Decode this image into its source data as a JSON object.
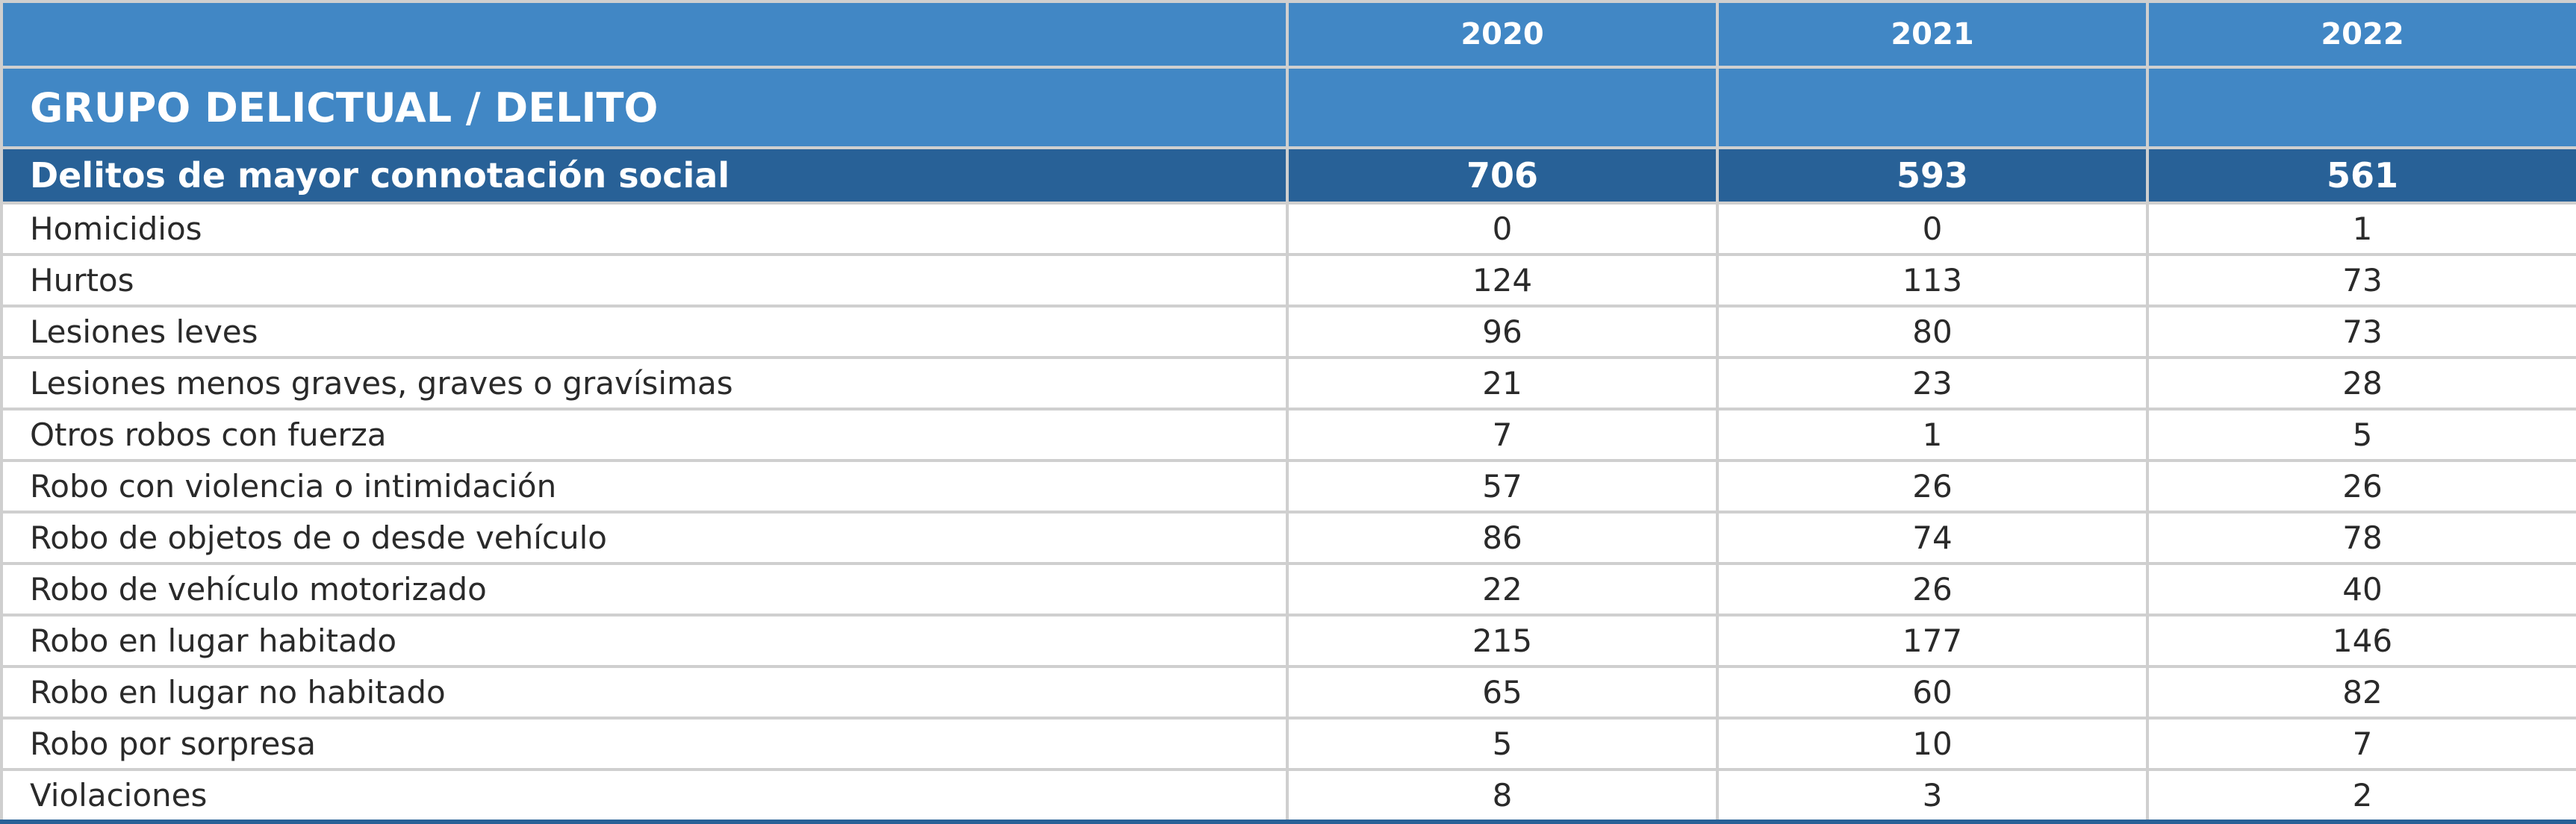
{
  "table": {
    "years": [
      "2020",
      "2021",
      "2022"
    ],
    "group_header": "GRUPO DELICTUAL / DELITO",
    "category": {
      "label": "Delitos de mayor connotación social",
      "values": [
        "706",
        "593",
        "561"
      ]
    },
    "rows": [
      {
        "label": "Homicidios",
        "values": [
          "0",
          "0",
          "1"
        ]
      },
      {
        "label": "Hurtos",
        "values": [
          "124",
          "113",
          "73"
        ]
      },
      {
        "label": "Lesiones leves",
        "values": [
          "96",
          "80",
          "73"
        ]
      },
      {
        "label": "Lesiones menos graves, graves o gravísimas",
        "values": [
          "21",
          "23",
          "28"
        ]
      },
      {
        "label": "Otros robos con fuerza",
        "values": [
          "7",
          "1",
          "5"
        ]
      },
      {
        "label": "Robo con violencia o intimidación",
        "values": [
          "57",
          "26",
          "26"
        ]
      },
      {
        "label": "Robo de objetos de o desde vehículo",
        "values": [
          "86",
          "74",
          "78"
        ]
      },
      {
        "label": "Robo de vehículo motorizado",
        "values": [
          "22",
          "26",
          "40"
        ]
      },
      {
        "label": "Robo en lugar habitado",
        "values": [
          "215",
          "177",
          "146"
        ]
      },
      {
        "label": "Robo en lugar no habitado",
        "values": [
          "65",
          "60",
          "82"
        ]
      },
      {
        "label": "Robo por sorpresa",
        "values": [
          "5",
          "10",
          "7"
        ]
      },
      {
        "label": "Violaciones",
        "values": [
          "8",
          "3",
          "2"
        ]
      }
    ]
  },
  "colors": {
    "header_blue": "#4187c5",
    "total_row_blue": "#286197",
    "grid_gray": "#cfcfcf",
    "text_dark": "#2a2a2a"
  }
}
